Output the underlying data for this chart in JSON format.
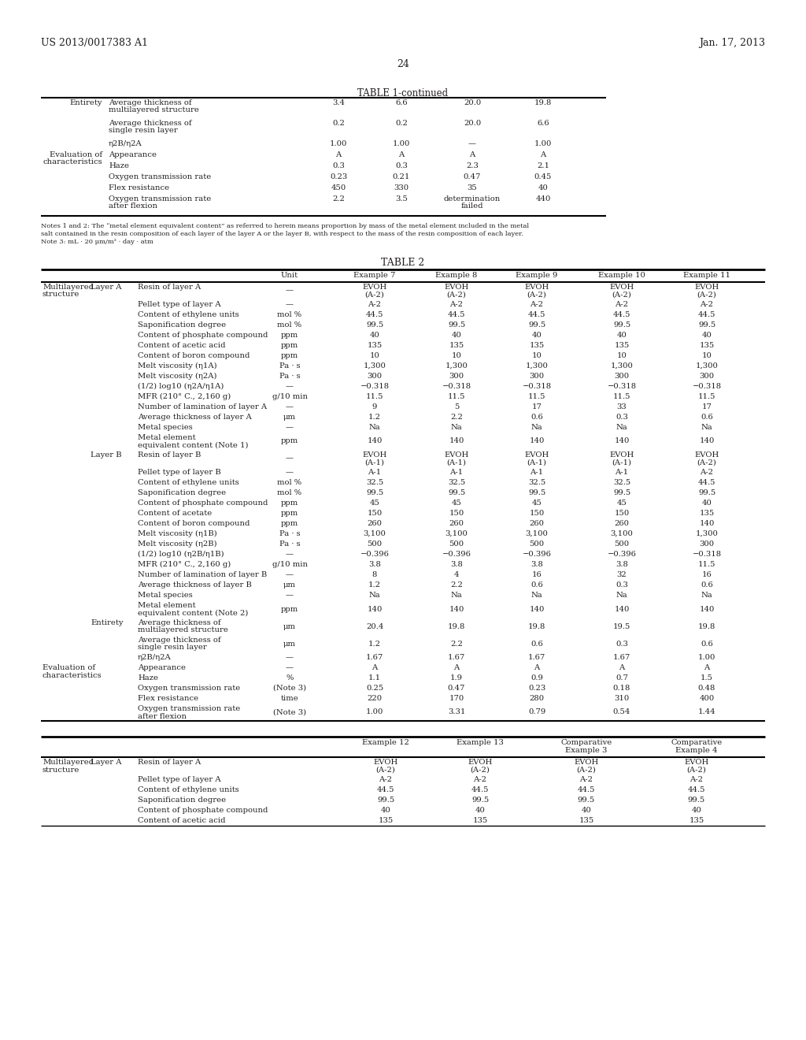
{
  "header_left": "US 2013/0017383 A1",
  "header_right": "Jan. 17, 2013",
  "page_number": "24",
  "table1_continued_title": "TABLE 1-continued",
  "notes": "Notes 1 and 2: The “metal element equivalent content” as referred to herein means proportion by mass of the metal element included in the metal\nsalt contained in the resin composition of each layer of the layer A or the layer B, with respect to the mass of the resin composition of each layer.\nNote 3: mL · 20 μm/m² · day · atm",
  "table2_title": "TABLE 2",
  "background_color": "#ffffff",
  "text_color": "#231f20",
  "font_size": 7.2
}
